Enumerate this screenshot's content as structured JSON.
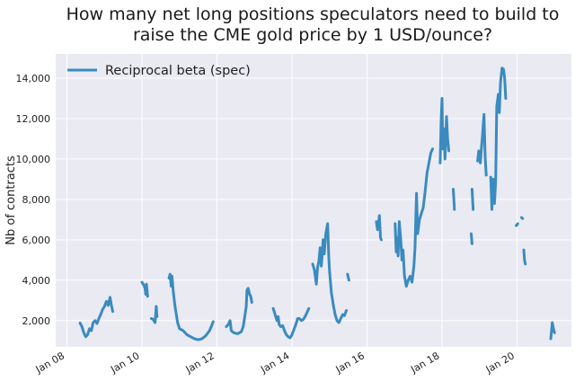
{
  "chart_data": {
    "type": "line",
    "title_lines": [
      "How many net long positions speculators need to build to",
      "raise the CME gold price by 1 USD/ounce?"
    ],
    "xlabel": "",
    "ylabel": "Nb of contracts",
    "xlim": [
      2007.7,
      2021.45
    ],
    "ylim": [
      700,
      15200
    ],
    "x_ticks": [
      {
        "value": 2008,
        "label": "Jan 08"
      },
      {
        "value": 2010,
        "label": "Jan 10"
      },
      {
        "value": 2012,
        "label": "Jan 12"
      },
      {
        "value": 2014,
        "label": "Jan 14"
      },
      {
        "value": 2016,
        "label": "Jan 16"
      },
      {
        "value": 2018,
        "label": "Jan 18"
      },
      {
        "value": 2020,
        "label": "Jan 20"
      }
    ],
    "y_ticks": [
      {
        "value": 2000,
        "label": "2,000"
      },
      {
        "value": 4000,
        "label": "4,000"
      },
      {
        "value": 6000,
        "label": "6,000"
      },
      {
        "value": 8000,
        "label": "8,000"
      },
      {
        "value": 10000,
        "label": "10,000"
      },
      {
        "value": 12000,
        "label": "12,000"
      },
      {
        "value": 14000,
        "label": "14,000"
      }
    ],
    "grid": true,
    "legend_position": "top-left",
    "colors": {
      "series": "#3a8bbf",
      "plot_bg": "#eaeaf2",
      "grid": "#ffffff"
    },
    "series": [
      {
        "name": "Reciprocal beta (spec)",
        "segments": [
          [
            [
              2008.35,
              1880
            ],
            [
              2008.4,
              1700
            ],
            [
              2008.45,
              1400
            ],
            [
              2008.5,
              1200
            ],
            [
              2008.55,
              1300
            ],
            [
              2008.6,
              1600
            ],
            [
              2008.65,
              1500
            ],
            [
              2008.7,
              1900
            ],
            [
              2008.75,
              2000
            ],
            [
              2008.8,
              1850
            ],
            [
              2008.85,
              2100
            ],
            [
              2008.9,
              2300
            ],
            [
              2008.95,
              2550
            ],
            [
              2009.0,
              2700
            ],
            [
              2009.05,
              2950
            ],
            [
              2009.1,
              2750
            ],
            [
              2009.15,
              3150
            ],
            [
              2009.18,
              2800
            ],
            [
              2009.22,
              2450
            ]
          ],
          [
            [
              2010.0,
              3900
            ],
            [
              2010.05,
              3750
            ],
            [
              2010.08,
              3600
            ],
            [
              2010.1,
              3300
            ],
            [
              2010.12,
              3800
            ],
            [
              2010.15,
              3200
            ]
          ],
          [
            [
              2010.25,
              2100
            ],
            [
              2010.3,
              2050
            ],
            [
              2010.35,
              1900
            ],
            [
              2010.38,
              2700
            ],
            [
              2010.4,
              2200
            ]
          ],
          [
            [
              2010.72,
              4100
            ],
            [
              2010.75,
              4300
            ],
            [
              2010.78,
              3700
            ],
            [
              2010.8,
              4200
            ],
            [
              2010.83,
              3500
            ],
            [
              2010.88,
              2700
            ],
            [
              2010.95,
              1900
            ],
            [
              2011.0,
              1600
            ],
            [
              2011.1,
              1500
            ],
            [
              2011.2,
              1300
            ],
            [
              2011.3,
              1200
            ],
            [
              2011.4,
              1100
            ],
            [
              2011.5,
              1050
            ],
            [
              2011.6,
              1100
            ],
            [
              2011.7,
              1250
            ],
            [
              2011.8,
              1500
            ],
            [
              2011.85,
              1700
            ],
            [
              2011.9,
              1950
            ]
          ],
          [
            [
              2012.25,
              1700
            ],
            [
              2012.3,
              1800
            ],
            [
              2012.35,
              2000
            ],
            [
              2012.38,
              1500
            ],
            [
              2012.45,
              1400
            ],
            [
              2012.55,
              1350
            ],
            [
              2012.65,
              1450
            ],
            [
              2012.7,
              1700
            ],
            [
              2012.75,
              2300
            ],
            [
              2012.78,
              2700
            ],
            [
              2012.8,
              3500
            ],
            [
              2012.83,
              3600
            ],
            [
              2012.87,
              3300
            ],
            [
              2012.9,
              3200
            ],
            [
              2012.93,
              2900
            ]
          ],
          [
            [
              2013.5,
              2600
            ],
            [
              2013.55,
              2300
            ],
            [
              2013.6,
              2000
            ],
            [
              2013.63,
              2200
            ],
            [
              2013.66,
              1800
            ],
            [
              2013.7,
              1700
            ],
            [
              2013.75,
              1750
            ],
            [
              2013.8,
              1500
            ],
            [
              2013.85,
              1300
            ],
            [
              2013.9,
              1200
            ],
            [
              2013.95,
              1150
            ],
            [
              2014.0,
              1300
            ],
            [
              2014.05,
              1550
            ],
            [
              2014.1,
              1800
            ],
            [
              2014.15,
              2100
            ],
            [
              2014.2,
              2100
            ],
            [
              2014.25,
              2000
            ],
            [
              2014.3,
              2050
            ],
            [
              2014.35,
              2200
            ],
            [
              2014.4,
              2400
            ],
            [
              2014.45,
              2600
            ]
          ],
          [
            [
              2014.55,
              4800
            ],
            [
              2014.6,
              4500
            ],
            [
              2014.65,
              3800
            ],
            [
              2014.68,
              4600
            ],
            [
              2014.72,
              5000
            ],
            [
              2014.75,
              5600
            ],
            [
              2014.78,
              4700
            ],
            [
              2014.8,
              5100
            ],
            [
              2014.83,
              6000
            ],
            [
              2014.86,
              5300
            ],
            [
              2014.9,
              6300
            ],
            [
              2014.95,
              6800
            ],
            [
              2014.98,
              5200
            ],
            [
              2015.0,
              4500
            ],
            [
              2015.05,
              3400
            ],
            [
              2015.1,
              2800
            ],
            [
              2015.15,
              2300
            ],
            [
              2015.2,
              2000
            ],
            [
              2015.25,
              1900
            ],
            [
              2015.3,
              2100
            ],
            [
              2015.35,
              2300
            ],
            [
              2015.4,
              2250
            ],
            [
              2015.45,
              2500
            ]
          ],
          [
            [
              2015.48,
              4300
            ],
            [
              2015.52,
              4000
            ]
          ],
          [
            [
              2016.25,
              6900
            ],
            [
              2016.28,
              6500
            ],
            [
              2016.3,
              6700
            ],
            [
              2016.33,
              7200
            ],
            [
              2016.36,
              6100
            ],
            [
              2016.38,
              6000
            ]
          ],
          [
            [
              2016.75,
              6800
            ],
            [
              2016.78,
              5400
            ],
            [
              2016.8,
              6100
            ],
            [
              2016.83,
              5200
            ],
            [
              2016.86,
              6900
            ],
            [
              2016.9,
              6000
            ],
            [
              2016.93,
              5000
            ],
            [
              2016.96,
              5500
            ],
            [
              2017.0,
              4200
            ],
            [
              2017.05,
              3700
            ],
            [
              2017.1,
              4000
            ],
            [
              2017.15,
              4200
            ],
            [
              2017.2,
              3900
            ],
            [
              2017.25,
              4700
            ],
            [
              2017.28,
              5600
            ],
            [
              2017.32,
              8300
            ],
            [
              2017.35,
              6300
            ],
            [
              2017.4,
              7000
            ],
            [
              2017.45,
              7300
            ],
            [
              2017.5,
              7600
            ],
            [
              2017.55,
              8400
            ],
            [
              2017.6,
              9300
            ],
            [
              2017.65,
              9800
            ],
            [
              2017.7,
              10300
            ],
            [
              2017.75,
              10500
            ]
          ],
          [
            [
              2017.95,
              9800
            ],
            [
              2017.98,
              12000
            ],
            [
              2018.0,
              13000
            ],
            [
              2018.02,
              10500
            ],
            [
              2018.05,
              11500
            ],
            [
              2018.08,
              10000
            ],
            [
              2018.12,
              12100
            ],
            [
              2018.15,
              11000
            ],
            [
              2018.18,
              10400
            ]
          ],
          [
            [
              2018.3,
              8500
            ],
            [
              2018.33,
              7500
            ]
          ],
          [
            [
              2018.8,
              8500
            ],
            [
              2018.83,
              7500
            ]
          ],
          [
            [
              2018.78,
              6300
            ],
            [
              2018.8,
              5800
            ]
          ],
          [
            [
              2018.95,
              9900
            ],
            [
              2018.98,
              10400
            ],
            [
              2019.02,
              9800
            ],
            [
              2019.05,
              10500
            ],
            [
              2019.08,
              11200
            ],
            [
              2019.12,
              12200
            ],
            [
              2019.15,
              10100
            ],
            [
              2019.18,
              9200
            ]
          ],
          [
            [
              2019.3,
              9100
            ],
            [
              2019.33,
              7500
            ],
            [
              2019.36,
              9000
            ],
            [
              2019.4,
              7800
            ],
            [
              2019.43,
              8900
            ],
            [
              2019.46,
              12600
            ],
            [
              2019.5,
              13200
            ],
            [
              2019.53,
              12300
            ],
            [
              2019.56,
              13800
            ],
            [
              2019.6,
              14500
            ],
            [
              2019.64,
              14450
            ],
            [
              2019.67,
              14000
            ],
            [
              2019.7,
              13000
            ]
          ],
          [
            [
              2019.98,
              6700
            ],
            [
              2020.02,
              6800
            ]
          ],
          [
            [
              2020.12,
              7100
            ],
            [
              2020.15,
              7050
            ]
          ],
          [
            [
              2020.18,
              5500
            ],
            [
              2020.2,
              5000
            ],
            [
              2020.22,
              4800
            ]
          ],
          [
            [
              2020.9,
              1100
            ],
            [
              2020.92,
              1500
            ],
            [
              2020.94,
              1900
            ],
            [
              2020.97,
              1600
            ],
            [
              2021.0,
              1400
            ]
          ]
        ]
      }
    ]
  }
}
